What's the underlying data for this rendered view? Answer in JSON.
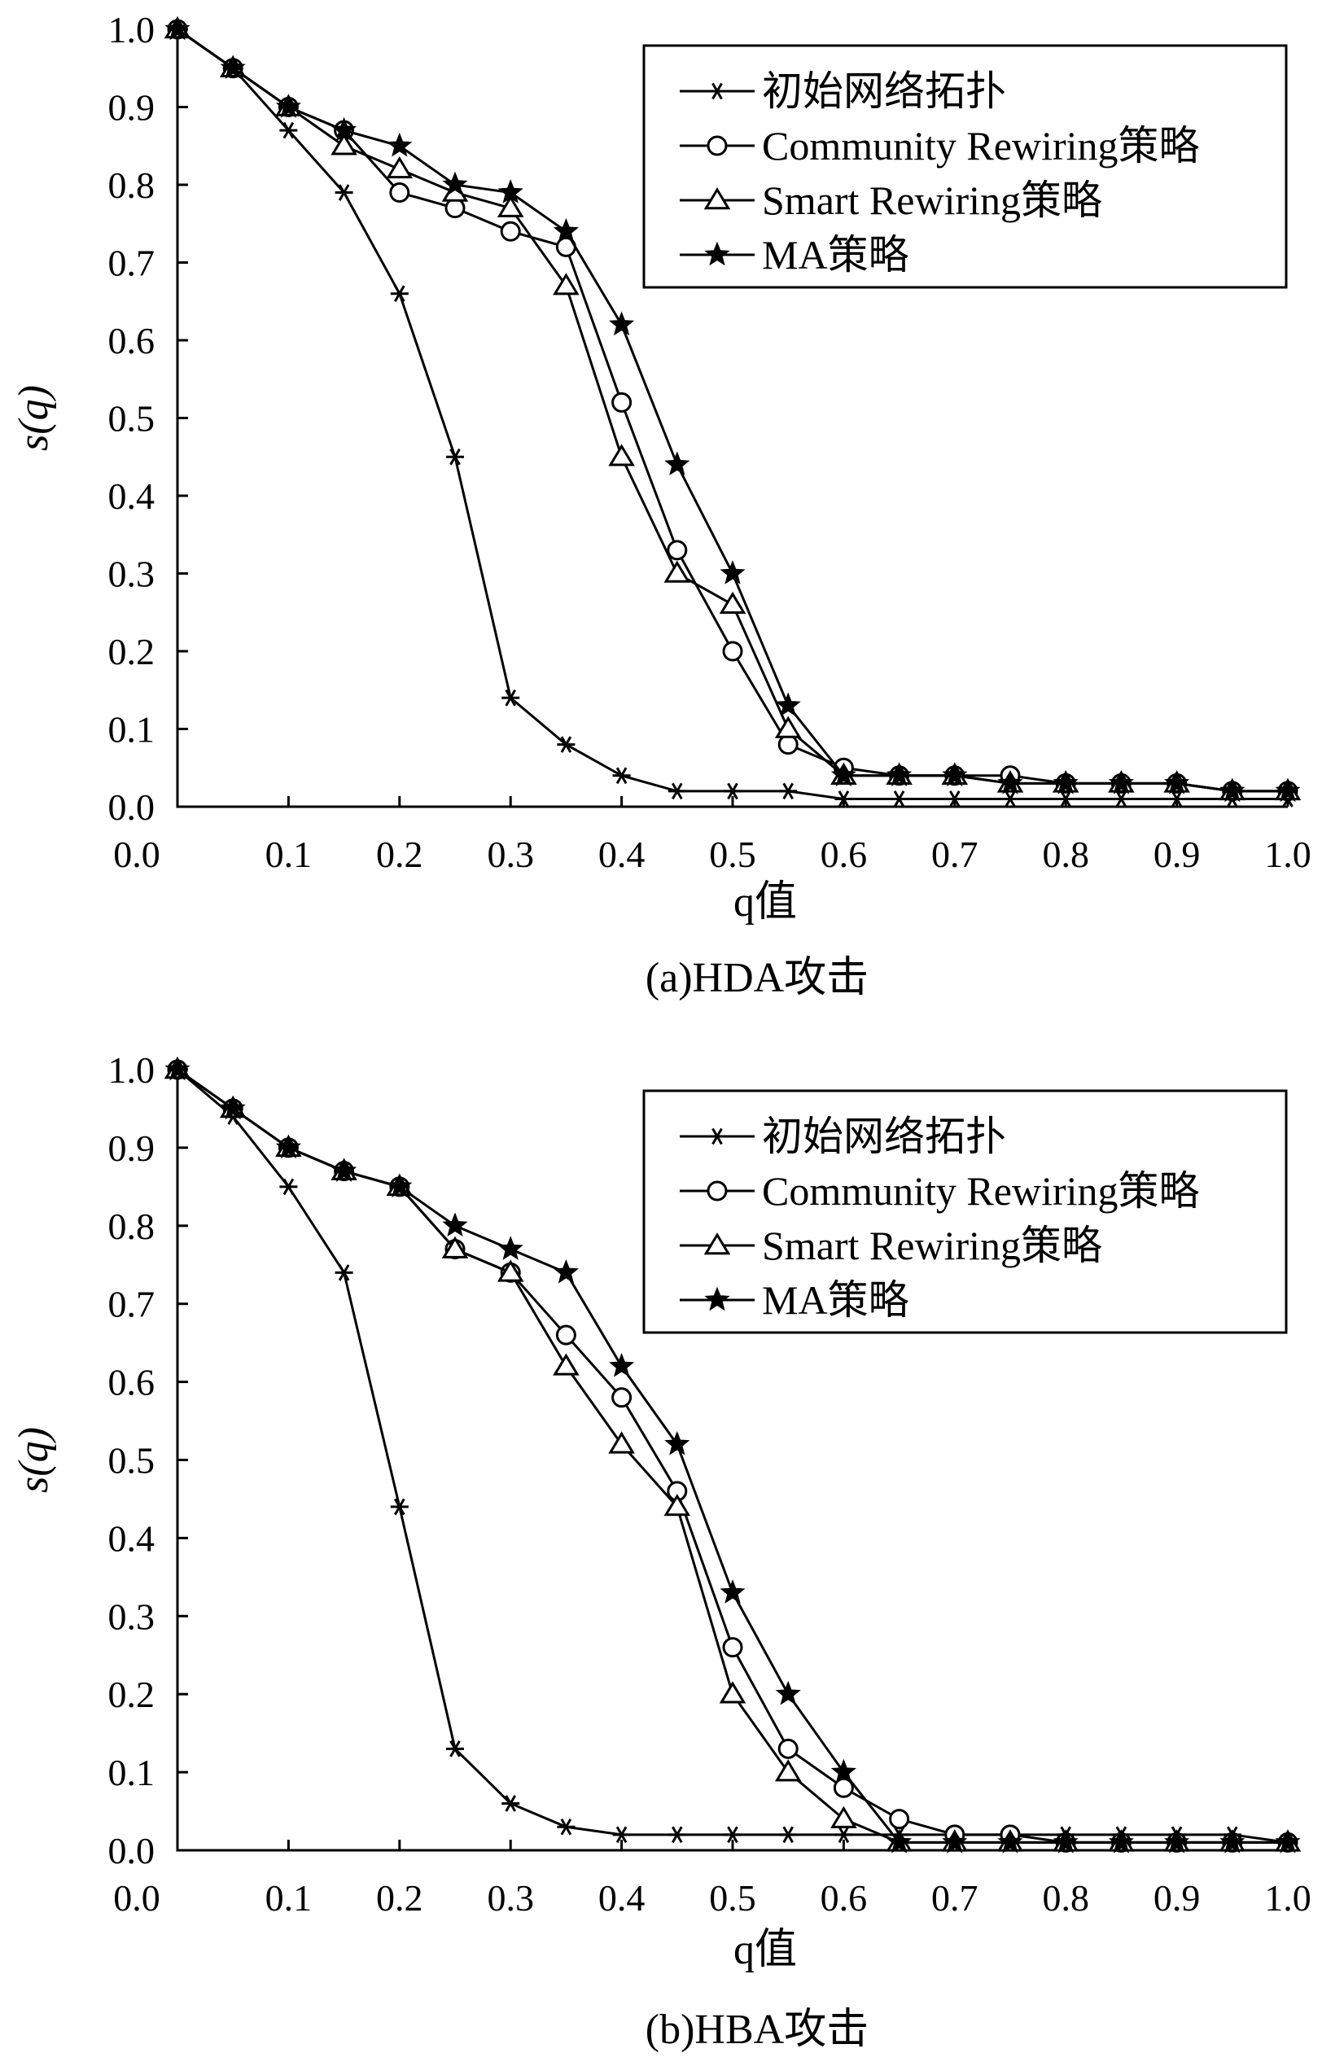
{
  "chart_data": [
    {
      "type": "line",
      "caption": "(a)HDA攻击",
      "xlabel": "q值",
      "ylabel": "s(q)",
      "xlim": [
        0.0,
        1.0
      ],
      "ylim": [
        0.0,
        1.0
      ],
      "x_ticks": [
        "0.0",
        "0.1",
        "0.2",
        "0.3",
        "0.4",
        "0.5",
        "0.6",
        "0.7",
        "0.8",
        "0.9",
        "1.0"
      ],
      "y_ticks": [
        "0.0",
        "0.1",
        "0.2",
        "0.3",
        "0.4",
        "0.5",
        "0.6",
        "0.7",
        "0.8",
        "0.9",
        "1.0"
      ],
      "legend_position": "top-right",
      "x": [
        0.0,
        0.05,
        0.1,
        0.15,
        0.2,
        0.25,
        0.3,
        0.35,
        0.4,
        0.45,
        0.5,
        0.55,
        0.6,
        0.65,
        0.7,
        0.75,
        0.8,
        0.85,
        0.9,
        0.95,
        1.0
      ],
      "series": [
        {
          "name": "初始网络拓扑",
          "marker": "asterisk",
          "values": [
            1.0,
            0.95,
            0.87,
            0.79,
            0.66,
            0.45,
            0.14,
            0.08,
            0.04,
            0.02,
            0.02,
            0.02,
            0.01,
            0.01,
            0.01,
            0.01,
            0.01,
            0.01,
            0.01,
            0.01,
            0.01
          ]
        },
        {
          "name": "Community Rewiring策略",
          "marker": "circle",
          "values": [
            1.0,
            0.95,
            0.9,
            0.87,
            0.79,
            0.77,
            0.74,
            0.72,
            0.52,
            0.33,
            0.2,
            0.08,
            0.05,
            0.04,
            0.04,
            0.04,
            0.03,
            0.03,
            0.03,
            0.02,
            0.02
          ]
        },
        {
          "name": "Smart Rewiring策略",
          "marker": "triangle",
          "values": [
            1.0,
            0.95,
            0.9,
            0.85,
            0.82,
            0.79,
            0.77,
            0.67,
            0.45,
            0.3,
            0.26,
            0.1,
            0.04,
            0.04,
            0.04,
            0.03,
            0.03,
            0.03,
            0.03,
            0.02,
            0.02
          ]
        },
        {
          "name": "MA策略",
          "marker": "star",
          "values": [
            1.0,
            0.95,
            0.9,
            0.87,
            0.85,
            0.8,
            0.79,
            0.74,
            0.62,
            0.44,
            0.3,
            0.13,
            0.04,
            0.04,
            0.04,
            0.03,
            0.03,
            0.03,
            0.03,
            0.02,
            0.02
          ]
        }
      ]
    },
    {
      "type": "line",
      "caption": "(b)HBA攻击",
      "xlabel": "q值",
      "ylabel": "s(q)",
      "xlim": [
        0.0,
        1.0
      ],
      "ylim": [
        0.0,
        1.0
      ],
      "x_ticks": [
        "0.0",
        "0.1",
        "0.2",
        "0.3",
        "0.4",
        "0.5",
        "0.6",
        "0.7",
        "0.8",
        "0.9",
        "1.0"
      ],
      "y_ticks": [
        "0.0",
        "0.1",
        "0.2",
        "0.3",
        "0.4",
        "0.5",
        "0.6",
        "0.7",
        "0.8",
        "0.9",
        "1.0"
      ],
      "legend_position": "top-right",
      "x": [
        0.0,
        0.05,
        0.1,
        0.15,
        0.2,
        0.25,
        0.3,
        0.35,
        0.4,
        0.45,
        0.5,
        0.55,
        0.6,
        0.65,
        0.7,
        0.75,
        0.8,
        0.85,
        0.9,
        0.95,
        1.0
      ],
      "series": [
        {
          "name": "初始网络拓扑",
          "marker": "asterisk",
          "values": [
            1.0,
            0.94,
            0.85,
            0.74,
            0.44,
            0.13,
            0.06,
            0.03,
            0.02,
            0.02,
            0.02,
            0.02,
            0.02,
            0.02,
            0.02,
            0.02,
            0.02,
            0.02,
            0.02,
            0.02,
            0.01
          ]
        },
        {
          "name": "Community Rewiring策略",
          "marker": "circle",
          "values": [
            1.0,
            0.95,
            0.9,
            0.87,
            0.85,
            0.77,
            0.74,
            0.66,
            0.58,
            0.46,
            0.26,
            0.13,
            0.08,
            0.04,
            0.02,
            0.02,
            0.01,
            0.01,
            0.01,
            0.01,
            0.01
          ]
        },
        {
          "name": "Smart Rewiring策略",
          "marker": "triangle",
          "values": [
            1.0,
            0.95,
            0.9,
            0.87,
            0.85,
            0.77,
            0.74,
            0.62,
            0.52,
            0.44,
            0.2,
            0.1,
            0.04,
            0.01,
            0.01,
            0.01,
            0.01,
            0.01,
            0.01,
            0.01,
            0.01
          ]
        },
        {
          "name": "MA策略",
          "marker": "star",
          "values": [
            1.0,
            0.95,
            0.9,
            0.87,
            0.85,
            0.8,
            0.77,
            0.74,
            0.62,
            0.52,
            0.33,
            0.2,
            0.1,
            0.01,
            0.01,
            0.01,
            0.01,
            0.01,
            0.01,
            0.01,
            0.01
          ]
        }
      ]
    }
  ]
}
